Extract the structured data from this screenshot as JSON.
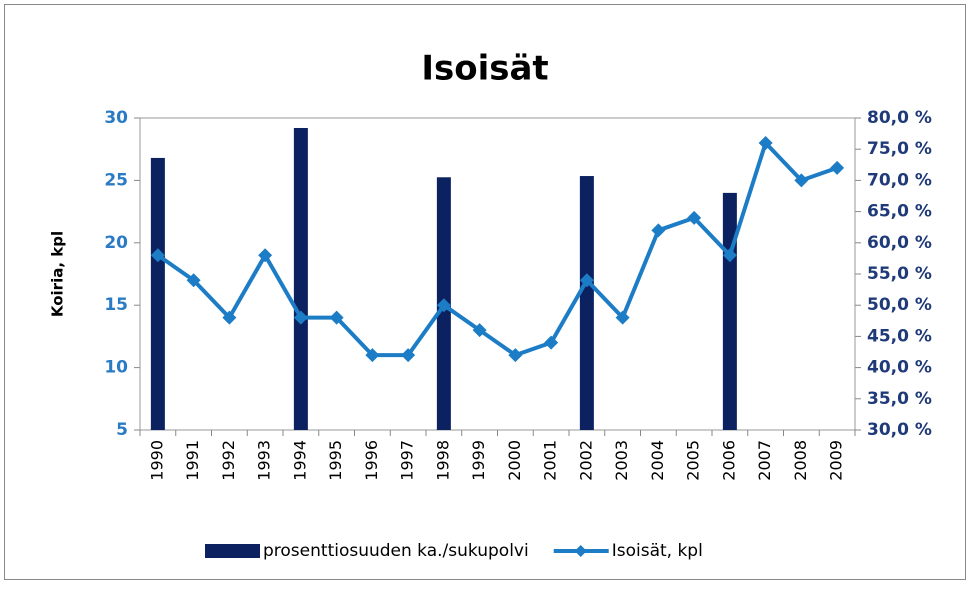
{
  "chart_data": {
    "type": "bar",
    "title": "Isoisät",
    "ylabel": "Koiria, kpl",
    "categories": [
      "1990",
      "1991",
      "1992",
      "1993",
      "1994",
      "1995",
      "1996",
      "1997",
      "1998",
      "1999",
      "2000",
      "2001",
      "2002",
      "2003",
      "2004",
      "2005",
      "2006",
      "2007",
      "2008",
      "2009"
    ],
    "series": [
      {
        "name": "prosenttiosuuden ka./sukupolvi",
        "type": "bar",
        "axis": "y2",
        "color": "#0c2260",
        "values": [
          73.6,
          null,
          null,
          null,
          78.4,
          null,
          null,
          null,
          70.5,
          null,
          null,
          null,
          70.7,
          null,
          null,
          null,
          68.0,
          null,
          null,
          null
        ]
      },
      {
        "name": "Isoisät, kpl",
        "type": "line",
        "axis": "y",
        "color": "#1c7dc6",
        "values": [
          19,
          17,
          14,
          19,
          14,
          14,
          11,
          11,
          15,
          13,
          11,
          12,
          17,
          14,
          21,
          22,
          19,
          28,
          25,
          26
        ]
      }
    ],
    "ylim": [
      5,
      30
    ],
    "yticks": [
      5,
      10,
      15,
      20,
      25,
      30
    ],
    "y2lim": [
      30,
      80
    ],
    "y2ticks": [
      {
        "value": 30,
        "label": "30,0 %"
      },
      {
        "value": 35,
        "label": "35,0 %"
      },
      {
        "value": 40,
        "label": "40,0 %"
      },
      {
        "value": 45,
        "label": "45,0 %"
      },
      {
        "value": 50,
        "label": "50,0 %"
      },
      {
        "value": 55,
        "label": "55,0 %"
      },
      {
        "value": 60,
        "label": "60,0 %"
      },
      {
        "value": 65,
        "label": "65,0 %"
      },
      {
        "value": 70,
        "label": "70,0 %"
      },
      {
        "value": 75,
        "label": "75,0 %"
      },
      {
        "value": 80,
        "label": "80,0 %"
      }
    ],
    "grid": false,
    "legend": "bottom"
  }
}
